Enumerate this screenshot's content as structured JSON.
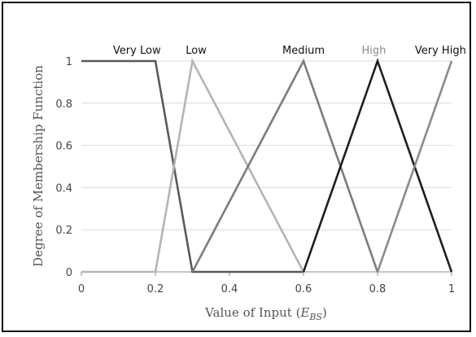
{
  "chart_data": {
    "type": "line",
    "title": "",
    "xlabel_prefix": "Value of Input (",
    "xlabel_var": "E",
    "xlabel_sub": "BS",
    "xlabel_suffix": ")",
    "ylabel": "Degree of Membership Function",
    "xlim": [
      0,
      1
    ],
    "ylim": [
      0,
      1
    ],
    "x_ticks": [
      "0",
      "0.2",
      "0.4",
      "0.6",
      "0.8",
      "1"
    ],
    "y_ticks": [
      "0",
      "0.2",
      "0.4",
      "0.6",
      "0.8",
      "1"
    ],
    "grid": true,
    "series": [
      {
        "name": "Very Low",
        "color": "#5a5a5a",
        "x": [
          0,
          0.2,
          0.3,
          0.6
        ],
        "y": [
          1,
          1,
          0,
          0
        ],
        "label_at": [
          0.15,
          1
        ]
      },
      {
        "name": "Low",
        "color": "#b4b4b4",
        "x": [
          0,
          0.2,
          0.3,
          0.6
        ],
        "y": [
          0,
          0,
          1,
          0
        ],
        "label_at": [
          0.31,
          1
        ]
      },
      {
        "name": "Medium",
        "color": "#7c7c7c",
        "x": [
          0.3,
          0.6,
          0.8
        ],
        "y": [
          0,
          1,
          0
        ],
        "label_at": [
          0.6,
          1
        ]
      },
      {
        "name": "High",
        "color": "#1e1e1e",
        "x": [
          0.6,
          0.8,
          1.0
        ],
        "y": [
          0,
          1,
          0
        ],
        "label_at": [
          0.79,
          1
        ]
      },
      {
        "name": "Very High",
        "color": "#8a8a8a",
        "x": [
          0.8,
          1.0
        ],
        "y": [
          0,
          1
        ],
        "label_at": [
          0.97,
          1
        ]
      }
    ]
  }
}
